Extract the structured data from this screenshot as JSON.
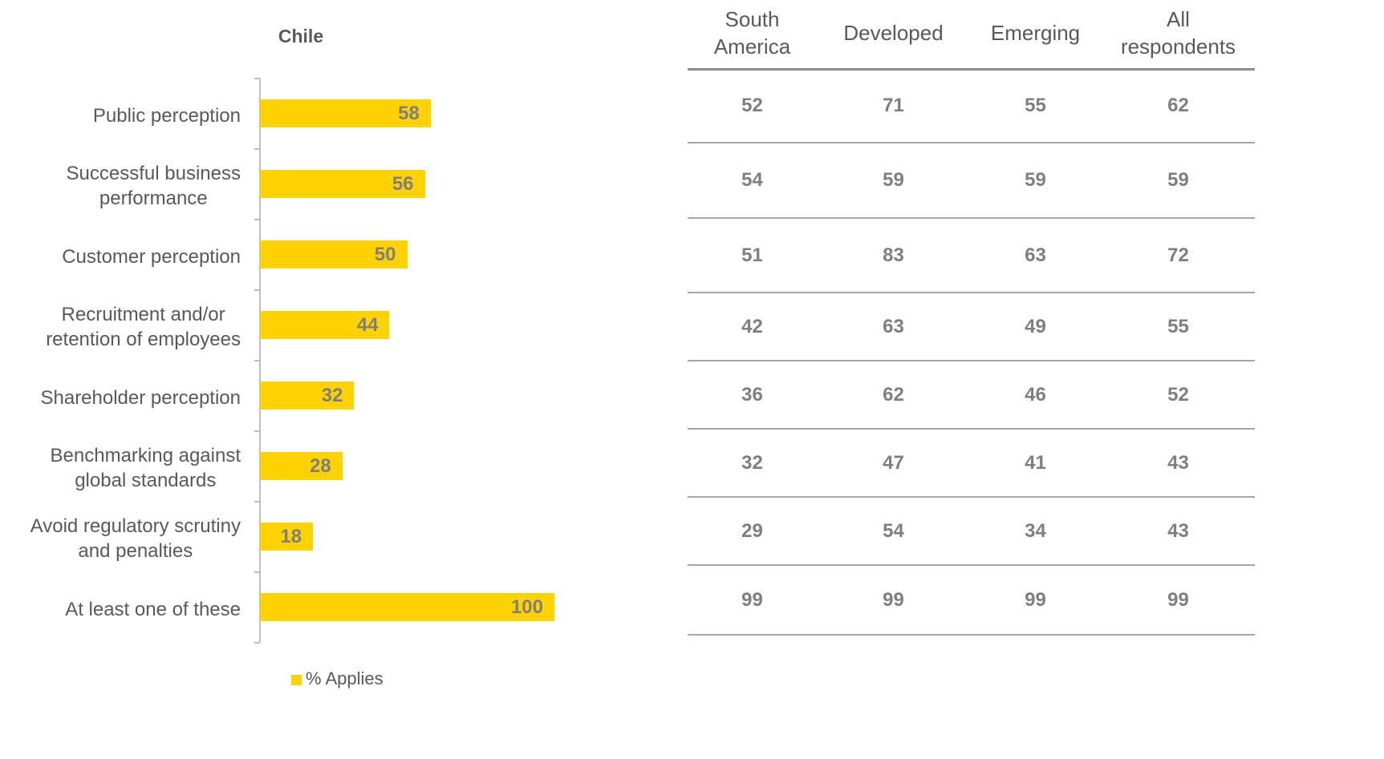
{
  "chart_data": {
    "type": "bar",
    "orientation": "horizontal",
    "title": "Chile",
    "categories": [
      "Public perception",
      "Successful business\nperformance",
      "Customer perception",
      "Recruitment and/or\nretention of employees",
      "Shareholder perception",
      "Benchmarking against\nglobal standards",
      "Avoid regulatory scrutiny\nand penalties",
      "At least one of these"
    ],
    "series": [
      {
        "name": "% Applies",
        "color": "#ffd200",
        "values": [
          58,
          56,
          50,
          44,
          32,
          28,
          18,
          100
        ]
      }
    ]
  },
  "table": {
    "columns": [
      "South\nAmerica",
      "Developed",
      "Emerging",
      "All\nrespondents"
    ],
    "rows": [
      [
        52,
        71,
        55,
        62
      ],
      [
        54,
        59,
        59,
        59
      ],
      [
        51,
        83,
        63,
        72
      ],
      [
        42,
        63,
        49,
        55
      ],
      [
        36,
        62,
        46,
        52
      ],
      [
        32,
        47,
        41,
        43
      ],
      [
        29,
        54,
        34,
        43
      ],
      [
        99,
        99,
        99,
        99
      ]
    ]
  }
}
